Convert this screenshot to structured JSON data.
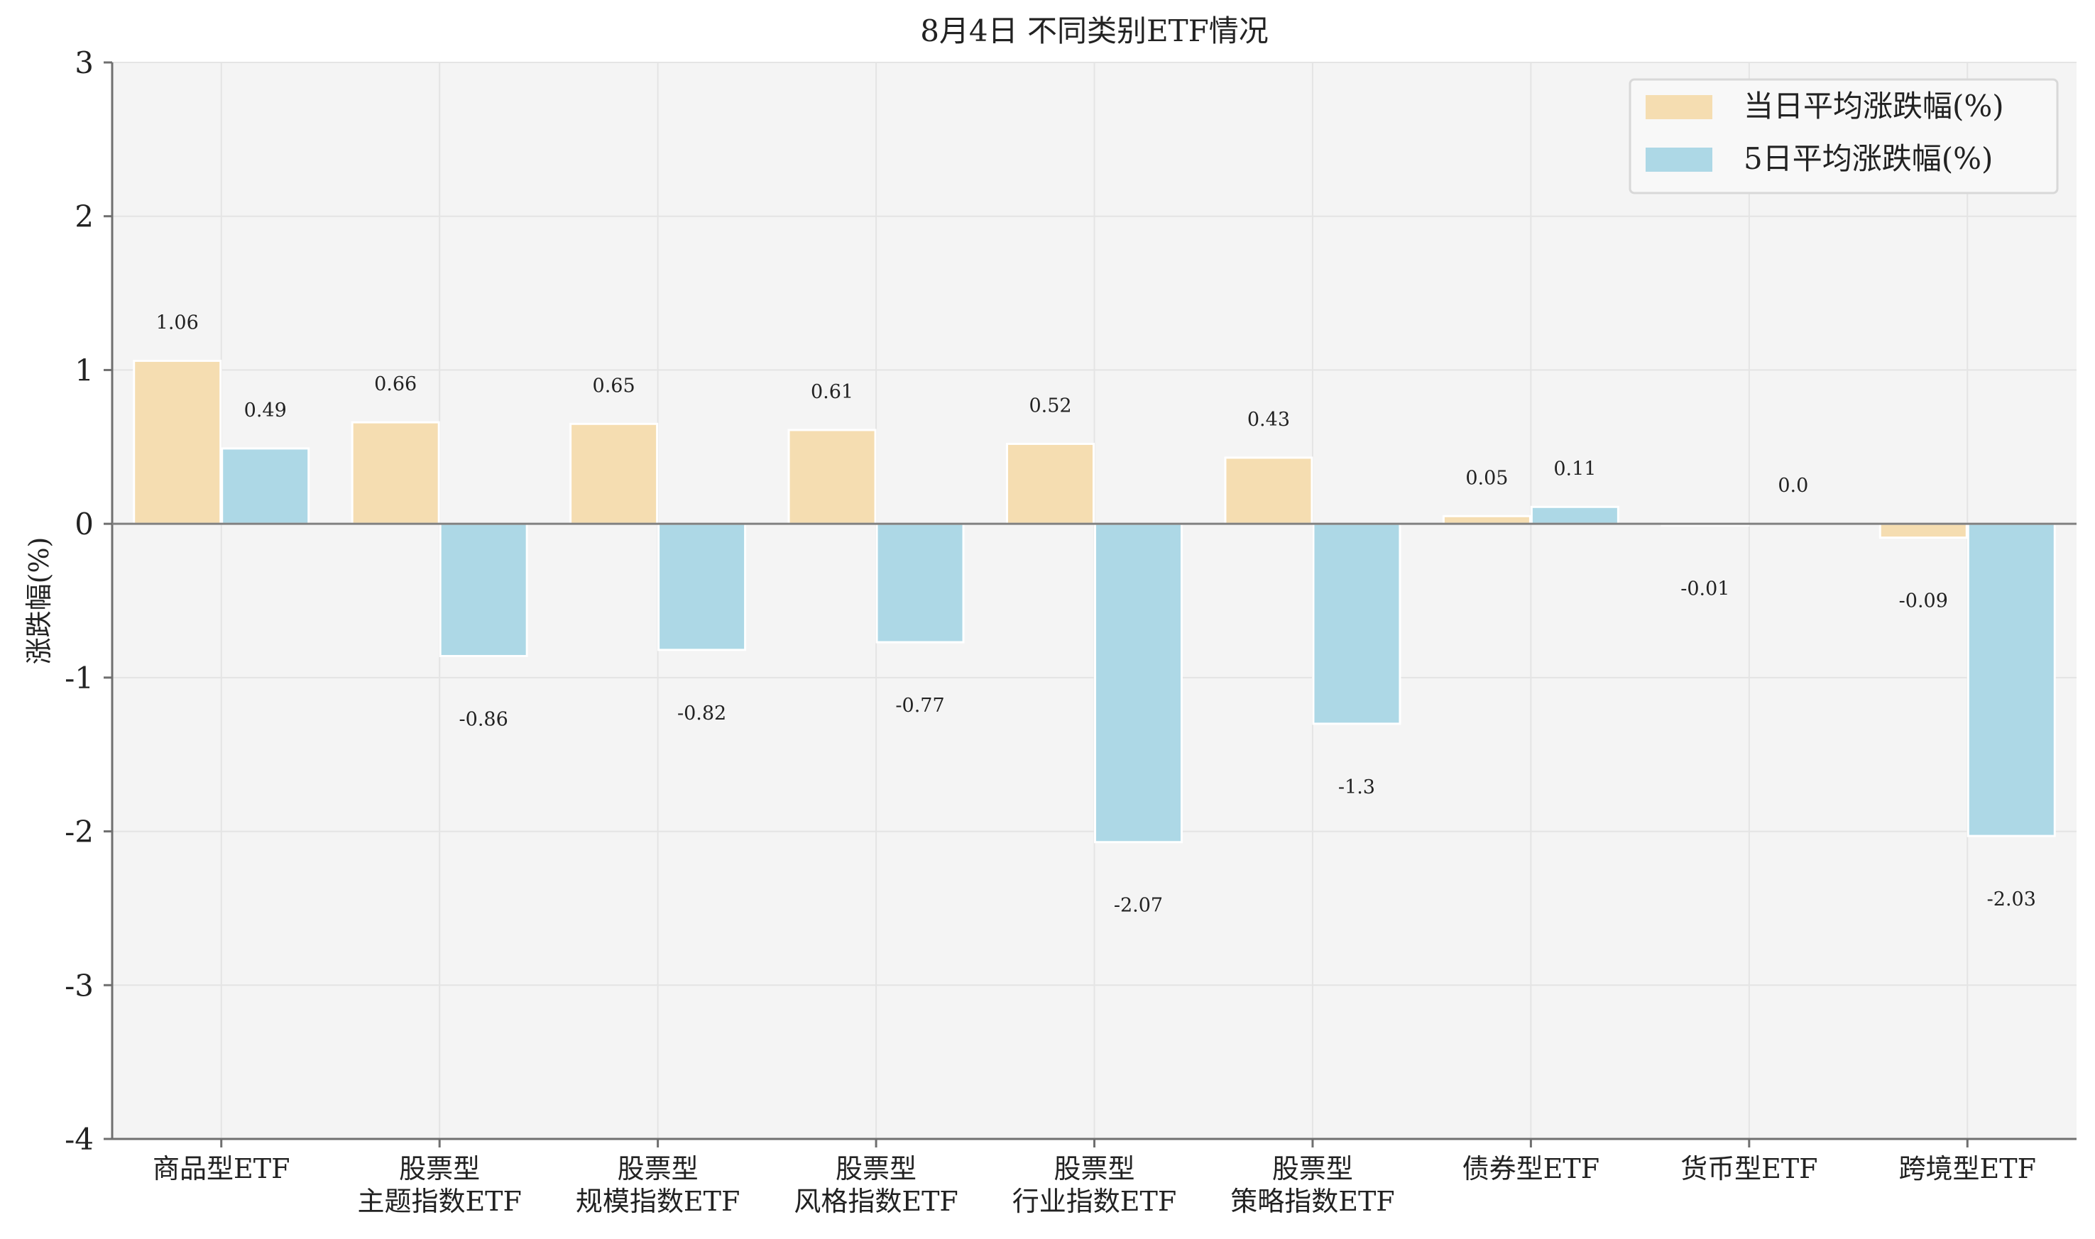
{
  "chart_data": {
    "type": "bar",
    "title": "8月4日 不同类别ETF情况",
    "xlabel": "",
    "ylabel": "涨跌幅(%)",
    "ylim": [
      -4,
      3
    ],
    "yticks": [
      3,
      2,
      1,
      0,
      -1,
      -2,
      -3,
      -4
    ],
    "ytick_labels": [
      "3",
      "2",
      "1",
      "0",
      "-1",
      "-2",
      "-3",
      "-4"
    ],
    "grid": true,
    "legend_position": "top-right",
    "categories": [
      [
        "商品型ETF"
      ],
      [
        "股票型",
        "主题指数ETF"
      ],
      [
        "股票型",
        "规模指数ETF"
      ],
      [
        "股票型",
        "风格指数ETF"
      ],
      [
        "股票型",
        "行业指数ETF"
      ],
      [
        "股票型",
        "策略指数ETF"
      ],
      [
        "债券型ETF"
      ],
      [
        "货币型ETF"
      ],
      [
        "跨境型ETF"
      ]
    ],
    "series": [
      {
        "name": "当日平均涨跌幅(%)",
        "color": "#f5ddb1",
        "values": [
          1.06,
          0.66,
          0.65,
          0.61,
          0.52,
          0.43,
          0.05,
          -0.01,
          -0.09
        ],
        "labels": [
          "1.06",
          "0.66",
          "0.65",
          "0.61",
          "0.52",
          "0.43",
          "0.05",
          "-0.01",
          "-0.09"
        ]
      },
      {
        "name": "5日平均涨跌幅(%)",
        "color": "#add8e6",
        "values": [
          0.49,
          -0.86,
          -0.82,
          -0.77,
          -2.07,
          -1.3,
          0.11,
          0.0,
          -2.03
        ],
        "labels": [
          "0.49",
          "-0.86",
          "-0.82",
          "-0.77",
          "-2.07",
          "-1.3",
          "0.11",
          "0.0",
          "-2.03"
        ]
      }
    ],
    "colors": {
      "plot_background": "#f4f4f4",
      "grid": "#e4e4e4",
      "axis": "#6f6f6f",
      "zero_line": "#808080",
      "text": "#222222"
    }
  }
}
